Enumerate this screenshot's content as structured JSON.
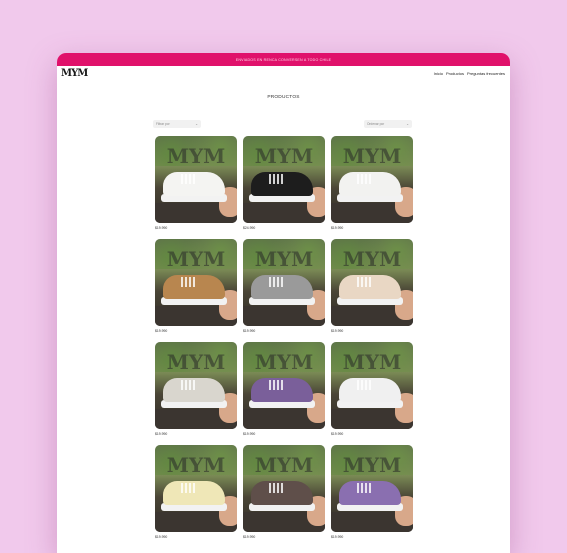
{
  "announcement": "ENVIADOS EN RENCA CONVERSEN A TODO CHILE",
  "logo": "MYM",
  "nav": {
    "items": [
      "Inicio",
      "Productos",
      "Preguntas frecuentes"
    ]
  },
  "page_title": "PRODUCTOS",
  "filters": {
    "left": "Filtrar por",
    "right": "Ordenar por"
  },
  "products": [
    {
      "price": "$19.990",
      "shoe_color": "#f4f4f2"
    },
    {
      "price": "$24.990",
      "shoe_color": "#1d1d1d"
    },
    {
      "price": "$19.990",
      "shoe_color": "#f2f2f0"
    },
    {
      "price": "$19.990",
      "shoe_color": "#b8864f"
    },
    {
      "price": "$19.990",
      "shoe_color": "#9a9a9a"
    },
    {
      "price": "$19.990",
      "shoe_color": "#e9d7c4"
    },
    {
      "price": "$19.990",
      "shoe_color": "#d9d6ce"
    },
    {
      "price": "$19.990",
      "shoe_color": "#7a5f9a"
    },
    {
      "price": "$19.990",
      "shoe_color": "#f0f0f0"
    },
    {
      "price": "$19.990",
      "shoe_color": "#efe7b7"
    },
    {
      "price": "$19.990",
      "shoe_color": "#5f4f4a"
    },
    {
      "price": "$19.990",
      "shoe_color": "#8a6fb0"
    }
  ],
  "colors": {
    "accent": "#e0116b",
    "background": "#f1c9ec"
  }
}
